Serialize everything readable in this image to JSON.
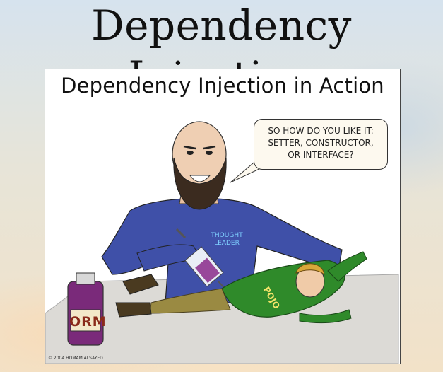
{
  "slide": {
    "title": "Dependency Injection"
  },
  "cartoon": {
    "title": "Dependency Injection in Action",
    "speech_bubble": {
      "line1": "SO HOW DO YOU LIKE IT:",
      "line2": "SETTER, CONSTRUCTOR,",
      "line3": "OR INTERFACE?"
    },
    "shirt_label": {
      "line1": "THOUGHT",
      "line2": "LEADER"
    },
    "jar_label": "ORM",
    "victim_label": "POJO",
    "copyright": "© 2004 HOMAM ALSAYED"
  },
  "colors": {
    "shirt_blue": "#3f50a8",
    "pojo_green": "#2f8a2a",
    "pants_khaki": "#9a8a42",
    "orm_purple": "#7a2a7a",
    "table_gray": "#d9d7d4"
  }
}
